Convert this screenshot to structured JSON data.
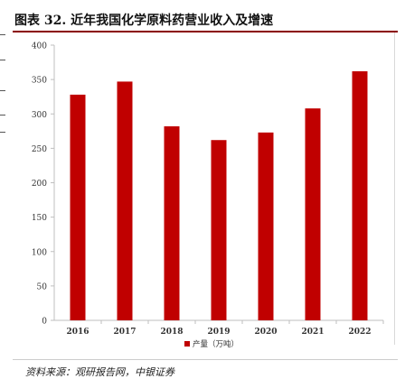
{
  "figure": {
    "title": "图表 32. 近年我国化学原料药营业收入及增速",
    "source": "资料来源：观研报告网，中银证券"
  },
  "colors": {
    "bar": "#c00000",
    "axis": "#bfbfbf",
    "grid": "#d9d9d9"
  },
  "chart_data": {
    "type": "bar",
    "categories": [
      "2016",
      "2017",
      "2018",
      "2019",
      "2020",
      "2021",
      "2022"
    ],
    "series": [
      {
        "name": "产量（万吨）",
        "values": [
          328,
          347,
          282,
          262,
          273,
          308,
          362
        ]
      }
    ],
    "ylim": [
      0,
      400
    ],
    "yticks": [
      "0",
      "50",
      "100",
      "150",
      "200",
      "250",
      "300",
      "350",
      "400"
    ],
    "legend_position": "bottom-center",
    "grid": false
  }
}
